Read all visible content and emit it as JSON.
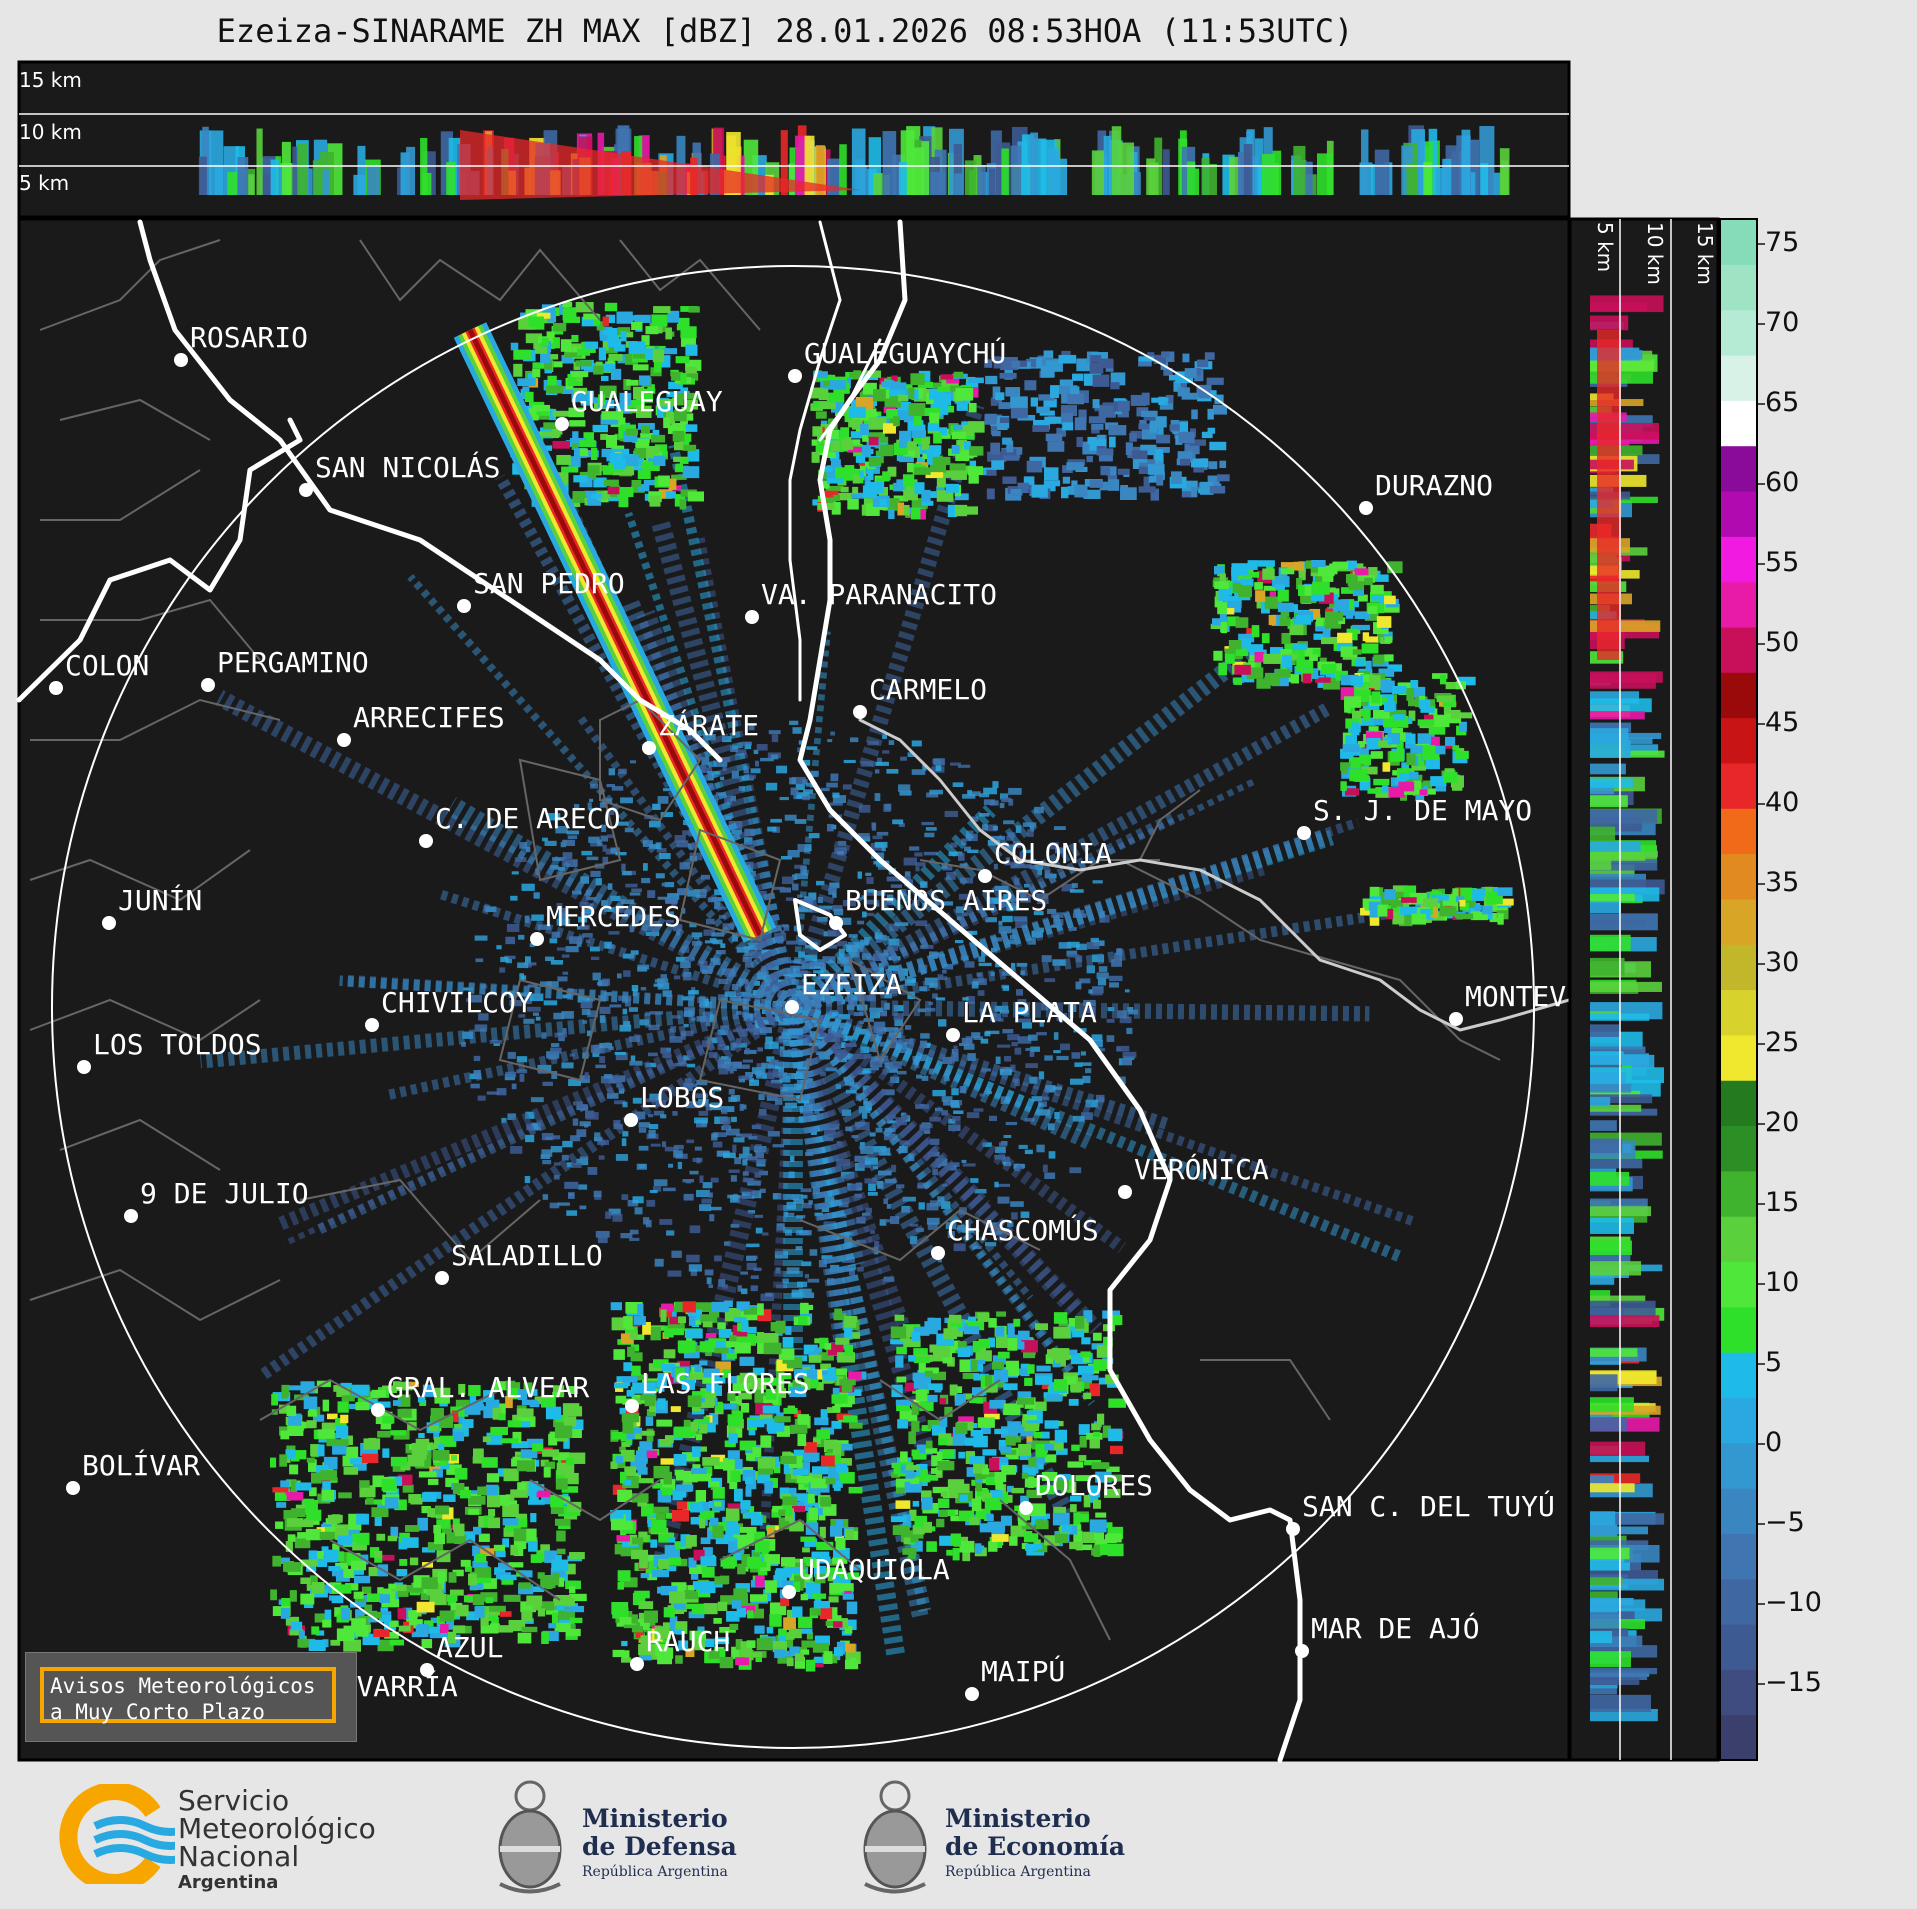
{
  "title": "Ezeiza-SINARAME ZH MAX [dBZ] 28.01.2026 08:53HOA (11:53UTC)",
  "top_panel": {
    "height_labels": [
      "15 km",
      "10 km",
      "5 km"
    ]
  },
  "side_panel": {
    "height_labels": [
      "5 km",
      "10 km",
      "15 km"
    ]
  },
  "colorbar": {
    "unit": "dBZ",
    "ticks": [
      "75",
      "70",
      "65",
      "60",
      "55",
      "50",
      "45",
      "40",
      "35",
      "30",
      "25",
      "20",
      "15",
      "10",
      "5",
      "0",
      "−5",
      "−10",
      "−15"
    ],
    "colors": [
      "#3b3f6b",
      "#3f4c7f",
      "#3e5a92",
      "#3f68a3",
      "#3f76b2",
      "#3a86c0",
      "#3398d0",
      "#2aa8e0",
      "#1fbbe8",
      "#2fe02a",
      "#4fe83a",
      "#5ad13c",
      "#3fb22e",
      "#2c8f26",
      "#237a1f",
      "#f0e82e",
      "#d8d22c",
      "#c2b62a",
      "#d9a526",
      "#e08a1f",
      "#f06a1a",
      "#e82828",
      "#c81414",
      "#9a0a0a",
      "#c8105a",
      "#e81aa8",
      "#f01ae0",
      "#b00ab0",
      "#8a0a9a",
      "#ffffff",
      "#d8f2e8",
      "#b5ead5",
      "#9ee3c4",
      "#86dcb8"
    ]
  },
  "cities": [
    {
      "name": "ROSARIO"
    },
    {
      "name": "GUALEGUAYCHÚ"
    },
    {
      "name": "GUALEGUAY"
    },
    {
      "name": "SAN NICOLÁS"
    },
    {
      "name": "DURAZNO"
    },
    {
      "name": "SAN PEDRO"
    },
    {
      "name": "VA. PARANACITO"
    },
    {
      "name": "COLON"
    },
    {
      "name": "PERGAMINO"
    },
    {
      "name": "CARMELO"
    },
    {
      "name": "ARRECIFES"
    },
    {
      "name": "ZÁRATE"
    },
    {
      "name": "S. J. DE MAYO"
    },
    {
      "name": "C. DE ARECO"
    },
    {
      "name": "COLONIA"
    },
    {
      "name": "JUNÍN"
    },
    {
      "name": "BUENOS AIRES"
    },
    {
      "name": "MERCEDES"
    },
    {
      "name": "EZEIZA"
    },
    {
      "name": "MONTEV"
    },
    {
      "name": "CHIVILCOY"
    },
    {
      "name": "LA PLATA"
    },
    {
      "name": "LOS TOLDOS"
    },
    {
      "name": "LOBOS"
    },
    {
      "name": "VERÓNICA"
    },
    {
      "name": "9 DE JULIO"
    },
    {
      "name": "CHASCOMÚS"
    },
    {
      "name": "SALADILLO"
    },
    {
      "name": "GRAL. ALVEAR"
    },
    {
      "name": "LAS FLORES"
    },
    {
      "name": "BOLÍVAR"
    },
    {
      "name": "DOLORES"
    },
    {
      "name": "SAN C. DEL TUYÚ"
    },
    {
      "name": "UDAQUIOLA"
    },
    {
      "name": "MAR DE AJÓ"
    },
    {
      "name": "AZUL"
    },
    {
      "name": "RAUCH"
    },
    {
      "name": "OLAVARRÍA"
    },
    {
      "name": "MAIPÚ"
    }
  ],
  "warning_box": {
    "line1": "Avisos Meteorológicos",
    "line2": "a Muy Corto Plazo"
  },
  "logos": {
    "smn": {
      "line1": "Servicio",
      "line2": "Meteorológico",
      "line3": "Nacional",
      "line4": "Argentina"
    },
    "defensa": {
      "line1": "Ministerio",
      "line2": "de Defensa",
      "line3": "República Argentina"
    },
    "economia": {
      "line1": "Ministerio",
      "line2": "de Economía",
      "line3": "República Argentina"
    }
  }
}
